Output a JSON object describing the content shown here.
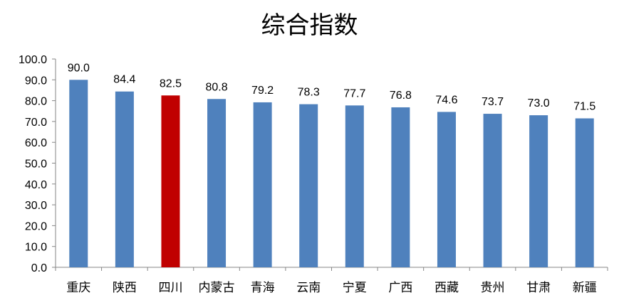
{
  "chart_data": {
    "type": "bar",
    "title": "综合指数",
    "categories": [
      "重庆",
      "陕西",
      "四川",
      "内蒙古",
      "青海",
      "云南",
      "宁夏",
      "广西",
      "西藏",
      "贵州",
      "甘肃",
      "新疆"
    ],
    "values": [
      90.0,
      84.4,
      82.5,
      80.8,
      79.2,
      78.3,
      77.7,
      76.8,
      74.6,
      73.7,
      73.0,
      71.5
    ],
    "data_labels": [
      "90.0",
      "84.4",
      "82.5",
      "80.8",
      "79.2",
      "78.3",
      "77.7",
      "76.8",
      "74.6",
      "73.7",
      "73.0",
      "71.5"
    ],
    "y_ticks": [
      "0.0",
      "10.0",
      "20.0",
      "30.0",
      "40.0",
      "50.0",
      "60.0",
      "70.0",
      "80.0",
      "90.0",
      "100.0"
    ],
    "ylim": [
      0,
      100
    ],
    "grid": false,
    "legend": "none",
    "colors": {
      "bar": "#4F81BD",
      "highlight": "#C00000",
      "axis": "#868686"
    },
    "highlight_category": "四川"
  }
}
